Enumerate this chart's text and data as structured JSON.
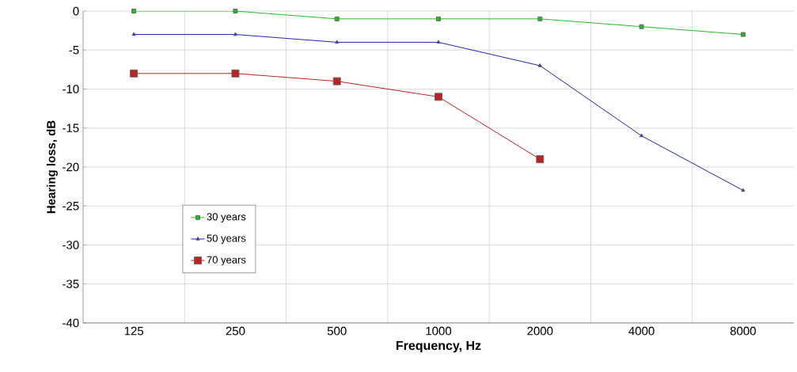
{
  "chart_data": {
    "type": "line",
    "xlabel": "Frequency, Hz",
    "ylabel": "Hearing loss, dB",
    "categories": [
      "125",
      "250",
      "500",
      "1000",
      "2000",
      "4000",
      "8000"
    ],
    "series": [
      {
        "name": "30 years",
        "color": "#22bb22",
        "marker": "square",
        "values": [
          0,
          0,
          -1,
          -1,
          -1,
          -2,
          -3
        ]
      },
      {
        "name": "50 years",
        "color": "#2222aa",
        "marker": "triangle",
        "values": [
          -3,
          -3,
          -4,
          -4,
          -7,
          -16,
          -23
        ]
      },
      {
        "name": "70 years",
        "color": "#bb2222",
        "marker": "square",
        "values": [
          -8,
          -8,
          -9,
          -11,
          -19,
          null,
          null
        ]
      }
    ],
    "ylim": [
      -40,
      0
    ],
    "yticks": [
      -40,
      -35,
      -30,
      -25,
      -20,
      -15,
      -10,
      -5,
      0
    ],
    "grid": true,
    "legend": "bottom left",
    "line_style": "solid"
  }
}
